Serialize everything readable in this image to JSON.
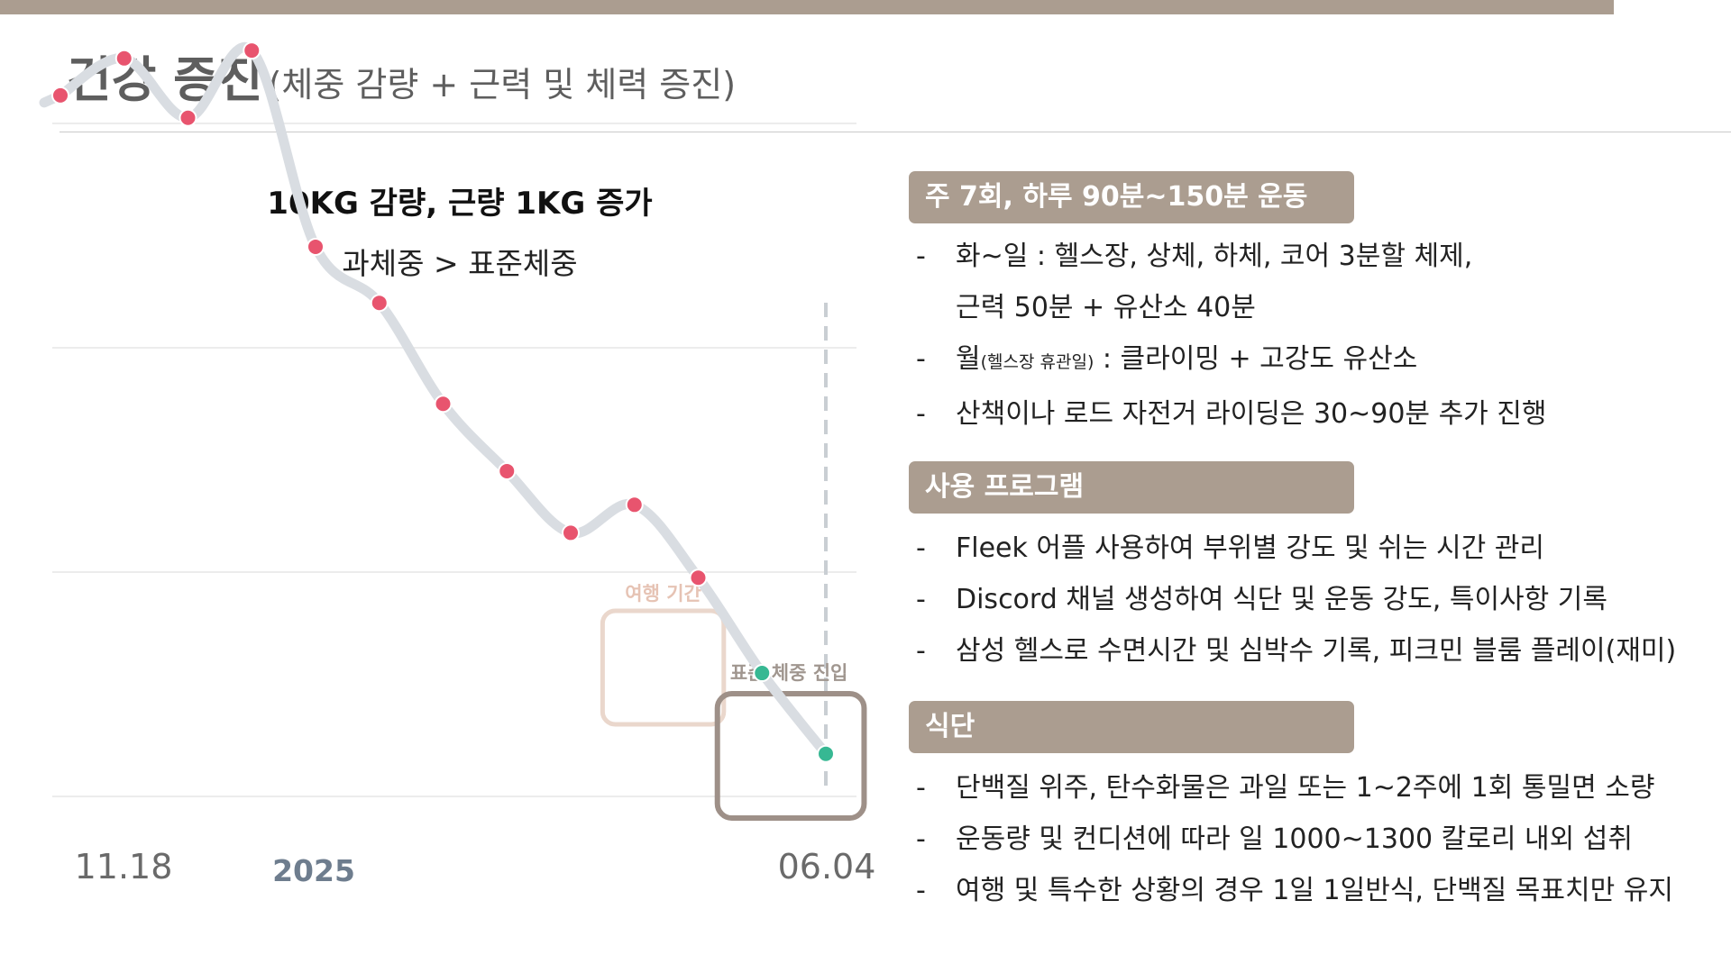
{
  "page": {
    "title": "건강 증진",
    "subtitle": "(체중 감량 + 근력 및 체력 증진)"
  },
  "chart_data": {
    "type": "line",
    "title": "10KG 감량, 근량 1KG 증가",
    "subtitle": "과체중 > 표준체중",
    "x_labels": [
      "11.18",
      "2025",
      "06.04"
    ],
    "y_unit": "",
    "grid": true,
    "legend": "none",
    "ylim": [
      0,
      8
    ],
    "series": [
      {
        "points": [
          {
            "x": 0,
            "y": 6.25,
            "status": "overweight"
          },
          {
            "x": 1,
            "y": 6.58,
            "status": "overweight"
          },
          {
            "x": 2,
            "y": 6.05,
            "status": "overweight"
          },
          {
            "x": 3,
            "y": 6.65,
            "status": "overweight"
          },
          {
            "x": 4,
            "y": 4.9,
            "status": "overweight"
          },
          {
            "x": 5,
            "y": 4.4,
            "status": "overweight"
          },
          {
            "x": 6,
            "y": 3.5,
            "status": "overweight"
          },
          {
            "x": 7,
            "y": 2.9,
            "status": "overweight"
          },
          {
            "x": 8,
            "y": 2.35,
            "status": "overweight"
          },
          {
            "x": 9,
            "y": 2.6,
            "status": "overweight"
          },
          {
            "x": 10,
            "y": 1.95,
            "status": "overweight"
          },
          {
            "x": 11,
            "y": 1.1,
            "status": "normal"
          },
          {
            "x": 12,
            "y": 0.38,
            "status": "normal"
          }
        ]
      }
    ],
    "colors": {
      "line": "#d9dde2",
      "overweight_point": "#e8546e",
      "normal_point": "#37b893",
      "grid": "#ececec",
      "travel_box": "#ead7cc",
      "travel_label": "#e6c3b4",
      "normal_box": "#9e9088",
      "normal_label": "#a0968f",
      "marker_line": "#c9ced3"
    },
    "annotations": [
      {
        "label": "여행 기간",
        "x_range": [
          8.5,
          10.4
        ]
      },
      {
        "label": "표준 체중 진입",
        "x_range": [
          10.3,
          12.6
        ]
      }
    ],
    "current_marker_x": 12
  },
  "sections": [
    {
      "header": "주 7회, 하루 90분~150분 운동",
      "items": [
        {
          "dash": "-",
          "text": "화~일 : 헬스장, 상체, 하체, 코어 3분할 체제,",
          "cont": "근력 50분 + 유산소 40분"
        },
        {
          "dash": "-",
          "pre": "월",
          "small": "(헬스장 휴관일)",
          "text": " : 클라이밍 + 고강도 유산소"
        },
        {
          "dash": "-",
          "text": "산책이나 로드 자전거 라이딩은 30~90분 추가 진행"
        }
      ]
    },
    {
      "header": "사용 프로그램",
      "items": [
        {
          "dash": "-",
          "text": "Fleek 어플 사용하여 부위별 강도 및 쉬는 시간 관리"
        },
        {
          "dash": "-",
          "text": "Discord 채널 생성하여 식단 및 운동 강도, 특이사항 기록"
        },
        {
          "dash": "-",
          "text": "삼성 헬스로 수면시간 및 심박수 기록, 피크민 블룸 플레이(재미)"
        }
      ]
    },
    {
      "header": "식단",
      "items": [
        {
          "dash": "-",
          "text": "단백질 위주, 탄수화물은 과일 또는 1~2주에 1회 통밀면 소량"
        },
        {
          "dash": "-",
          "text": "운동량 및 컨디션에 따라 일 1000~1300 칼로리 내외 섭취"
        },
        {
          "dash": "-",
          "text": "여행 및 특수한 상황의 경우 1일 1일반식, 단백질 목표치만 유지"
        }
      ]
    }
  ]
}
